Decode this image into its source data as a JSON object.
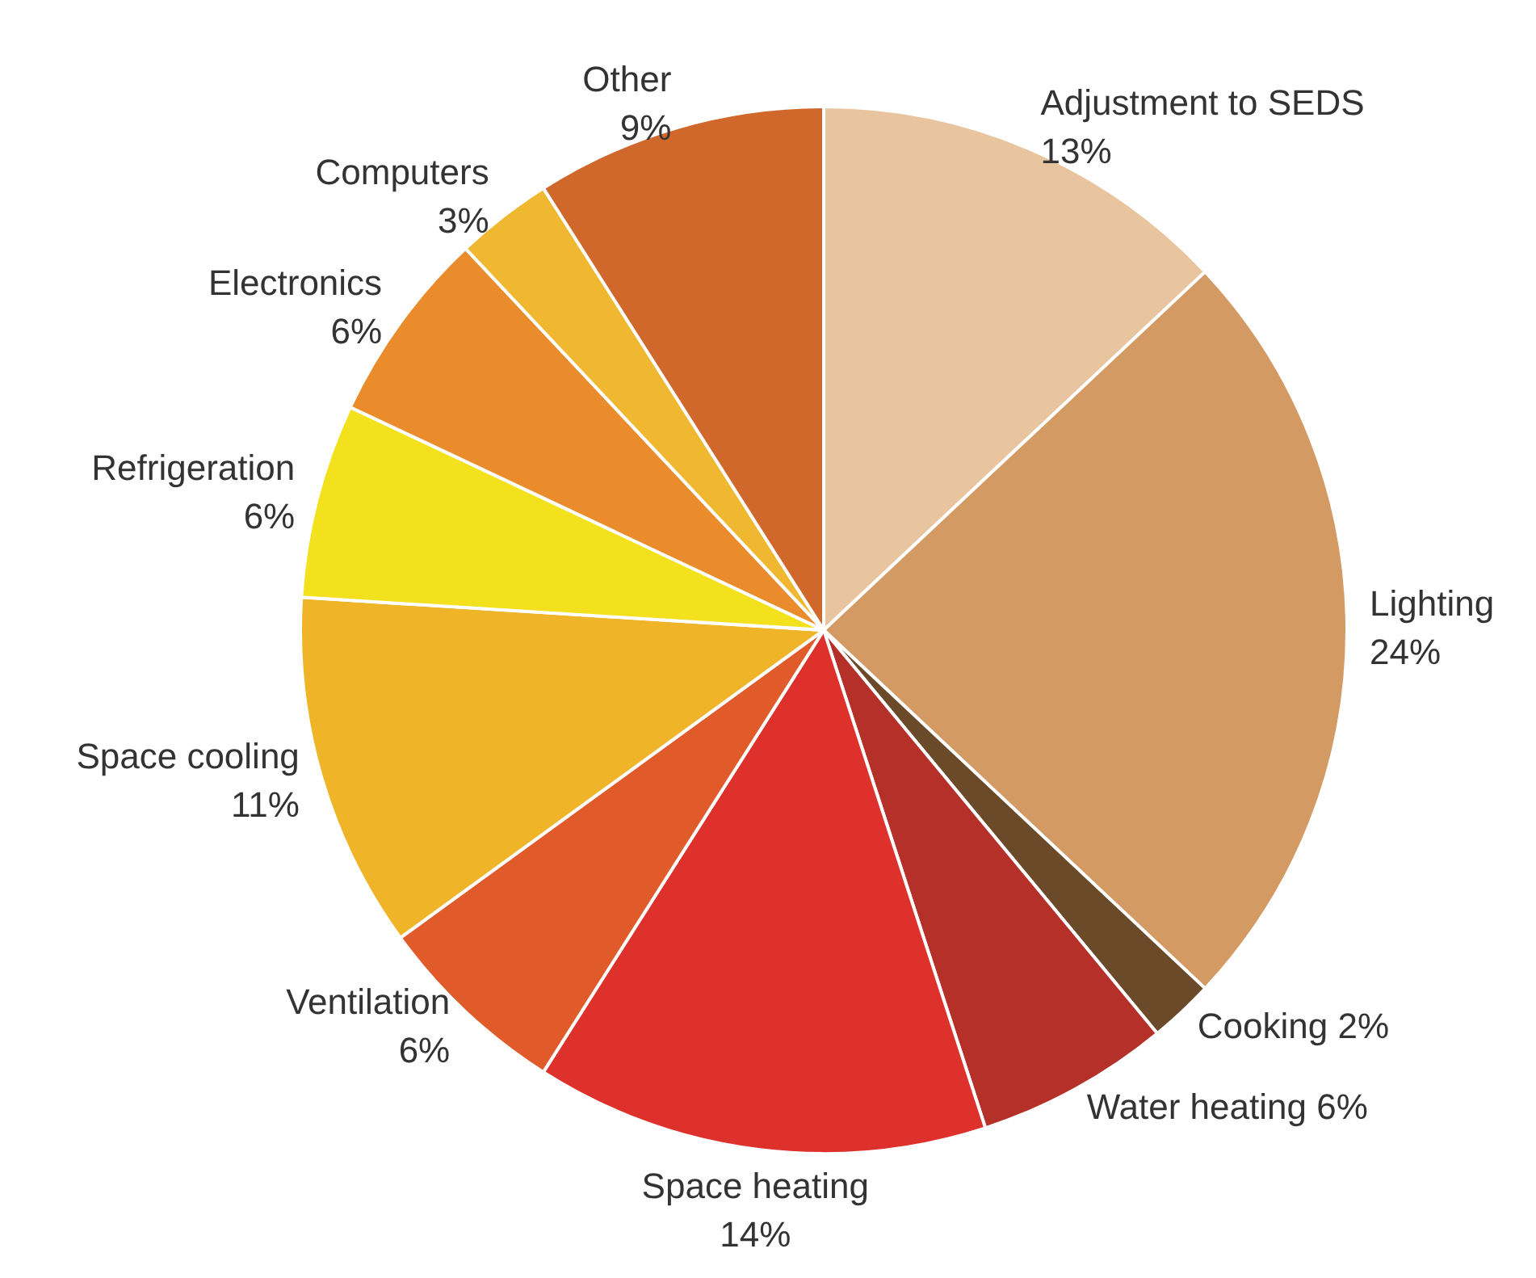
{
  "chart_data": {
    "type": "pie",
    "categories": [
      "Adjustment to SEDS",
      "Lighting",
      "Cooking",
      "Water heating",
      "Space heating",
      "Ventilation",
      "Space cooling",
      "Refrigeration",
      "Electronics",
      "Computers",
      "Other"
    ],
    "values": [
      13,
      24,
      2,
      6,
      14,
      6,
      11,
      6,
      6,
      3,
      9
    ],
    "value_labels": [
      "13%",
      "24%",
      "2%",
      "6%",
      "14%",
      "6%",
      "11%",
      "6%",
      "6%",
      "3%",
      "9%"
    ],
    "colors": [
      "#e8c49f",
      "#d49a64",
      "#6b4a2a",
      "#b53028",
      "#df312c",
      "#e05a2a",
      "#f0b428",
      "#f2e11c",
      "#ea8c2c",
      "#f0b830",
      "#d0682c"
    ],
    "legend": false
  }
}
